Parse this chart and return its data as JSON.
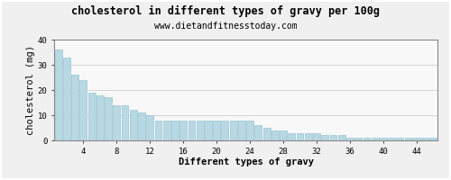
{
  "title": "cholesterol in different types of gravy per 100g",
  "subtitle": "www.dietandfitnesstoday.com",
  "xlabel": "Different types of gravy",
  "ylabel": "cholesterol (mg)",
  "bar_color": "#b8d8e4",
  "bar_edge_color": "#8bbccc",
  "background_color": "#f0f0f0",
  "plot_bg_color": "#f8f8f8",
  "grid_color": "#d0d0d0",
  "border_color": "#888888",
  "ylim": [
    0,
    40
  ],
  "yticks": [
    0,
    10,
    20,
    30,
    40
  ],
  "xticks": [
    4,
    8,
    12,
    16,
    20,
    24,
    28,
    32,
    36,
    40,
    44
  ],
  "values": [
    36,
    33,
    26,
    24,
    19,
    18,
    17,
    14,
    14,
    12,
    11,
    10,
    8,
    8,
    8,
    8,
    8,
    8,
    8,
    8,
    8,
    8,
    8,
    8,
    6,
    5,
    4,
    4,
    3,
    3,
    3,
    3,
    2,
    2,
    2,
    1,
    1,
    1,
    1,
    1,
    1,
    1,
    1,
    1,
    1,
    1
  ],
  "title_fontsize": 8.5,
  "subtitle_fontsize": 7,
  "axis_label_fontsize": 7.5,
  "tick_fontsize": 6.5,
  "figsize": [
    5.0,
    2.0
  ],
  "dpi": 100
}
